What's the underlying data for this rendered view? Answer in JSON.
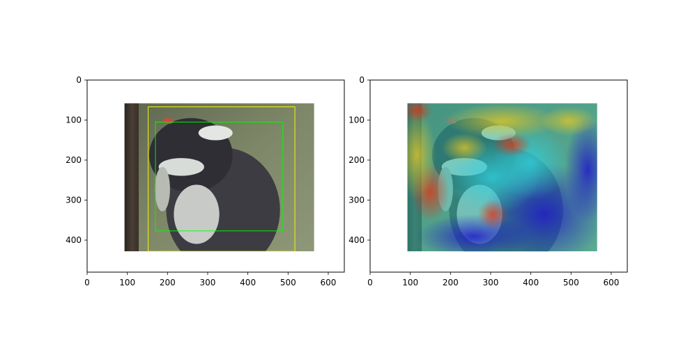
{
  "chart_data": [
    {
      "type": "image",
      "title": "",
      "xlabel": "",
      "ylabel": "",
      "xlim": [
        0,
        640
      ],
      "ylim": [
        480,
        0
      ],
      "xticks": [
        0,
        100,
        200,
        300,
        400,
        500,
        600
      ],
      "yticks": [
        0,
        100,
        200,
        300,
        400
      ],
      "image_extent": {
        "x": [
          93,
          565
        ],
        "y": [
          58,
          428
        ]
      },
      "image_content": "photo of a black-and-white woodpecker on a tree trunk",
      "boxes": [
        {
          "color": "#ffff00",
          "x0": 152,
          "y0": 67,
          "x1": 517,
          "y1": 428
        },
        {
          "color": "#00ff00",
          "x0": 170,
          "y0": 105,
          "x1": 487,
          "y1": 377
        }
      ]
    },
    {
      "type": "heatmap",
      "title": "",
      "xlabel": "",
      "ylabel": "",
      "xlim": [
        0,
        640
      ],
      "ylim": [
        480,
        0
      ],
      "xticks": [
        0,
        100,
        200,
        300,
        400,
        500,
        600
      ],
      "yticks": [
        0,
        100,
        200,
        300,
        400
      ],
      "image_extent": {
        "x": [
          93,
          565
        ],
        "y": [
          58,
          428
        ]
      },
      "colormap": "jet",
      "image_content": "jet-colormap attention heatmap overlaid on the woodpecker photo"
    }
  ]
}
